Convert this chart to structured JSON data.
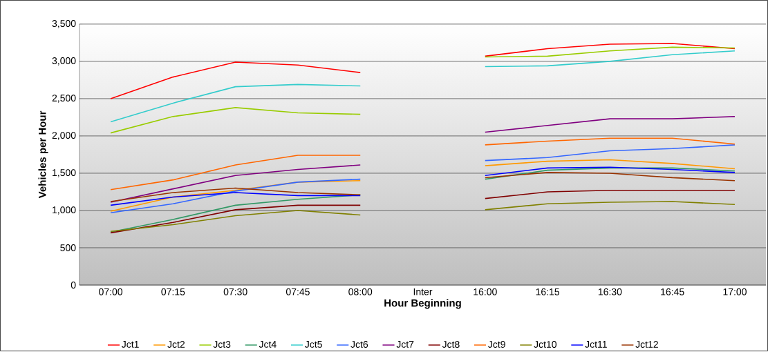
{
  "chart_data": {
    "type": "line",
    "xlabel": "Hour Beginning",
    "ylabel": "Vehicles per Hour",
    "categories": [
      "07:00",
      "07:15",
      "07:30",
      "07:45",
      "08:00",
      "Inter",
      "16:00",
      "16:15",
      "16:30",
      "16:45",
      "17:00"
    ],
    "ylim": [
      0,
      3500
    ],
    "yticks": [
      {
        "value": 0,
        "label": "0"
      },
      {
        "value": 500,
        "label": "500"
      },
      {
        "value": 1000,
        "label": "1,000"
      },
      {
        "value": 1500,
        "label": "1,500"
      },
      {
        "value": 2000,
        "label": "2,000"
      },
      {
        "value": 2500,
        "label": "2,500"
      },
      {
        "value": 3000,
        "label": "3,000"
      },
      {
        "value": 3500,
        "label": "3,500"
      }
    ],
    "grid": "y",
    "legend": "bottom",
    "marker": "none",
    "line_style": "solid",
    "series": [
      {
        "name": "Jct1",
        "color": "#ff0000",
        "values": [
          2500,
          2790,
          2990,
          2950,
          2850,
          null,
          3070,
          3170,
          3230,
          3240,
          3170
        ]
      },
      {
        "name": "Jct2",
        "color": "#ff9900",
        "values": [
          990,
          1180,
          1270,
          1380,
          1400,
          null,
          1600,
          1660,
          1680,
          1630,
          1560
        ]
      },
      {
        "name": "Jct3",
        "color": "#99cc00",
        "values": [
          2040,
          2260,
          2380,
          2310,
          2290,
          null,
          3060,
          3070,
          3140,
          3190,
          3180
        ]
      },
      {
        "name": "Jct4",
        "color": "#339966",
        "values": [
          710,
          880,
          1070,
          1150,
          1210,
          null,
          1420,
          1540,
          1570,
          1570,
          1530
        ]
      },
      {
        "name": "Jct5",
        "color": "#33cccc",
        "values": [
          2190,
          2440,
          2660,
          2690,
          2670,
          null,
          2930,
          2940,
          3000,
          3090,
          3140
        ]
      },
      {
        "name": "Jct6",
        "color": "#3366ff",
        "values": [
          970,
          1090,
          1260,
          1380,
          1420,
          null,
          1670,
          1710,
          1800,
          1830,
          1880
        ]
      },
      {
        "name": "Jct7",
        "color": "#800080",
        "values": [
          1110,
          1290,
          1470,
          1550,
          1610,
          null,
          2050,
          2140,
          2230,
          2230,
          2260
        ]
      },
      {
        "name": "Jct8",
        "color": "#800000",
        "values": [
          700,
          840,
          1010,
          1070,
          1070,
          null,
          1160,
          1250,
          1270,
          1270,
          1270
        ]
      },
      {
        "name": "Jct9",
        "color": "#ff6600",
        "values": [
          1280,
          1410,
          1610,
          1740,
          1740,
          null,
          1880,
          1930,
          1970,
          1970,
          1890
        ]
      },
      {
        "name": "Jct10",
        "color": "#808000",
        "values": [
          720,
          810,
          930,
          1000,
          940,
          null,
          1010,
          1090,
          1110,
          1120,
          1080
        ]
      },
      {
        "name": "Jct11",
        "color": "#0000ff",
        "values": [
          1070,
          1180,
          1240,
          1200,
          1200,
          null,
          1470,
          1570,
          1580,
          1550,
          1510
        ]
      },
      {
        "name": "Jct12",
        "color": "#993300",
        "values": [
          1120,
          1240,
          1300,
          1240,
          1210,
          null,
          1440,
          1510,
          1500,
          1440,
          1400
        ]
      }
    ]
  }
}
